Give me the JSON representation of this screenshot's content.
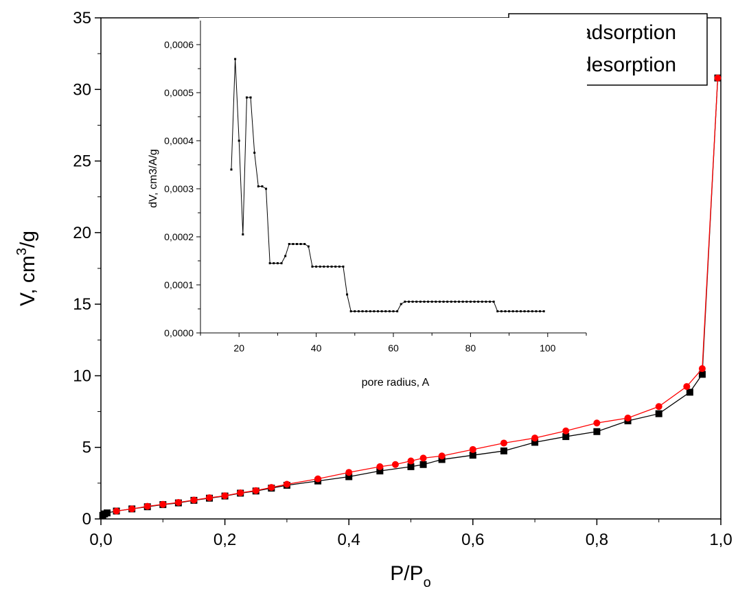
{
  "chart_data": [
    {
      "type": "line",
      "panel": "main",
      "xlabel_main": "P/P",
      "xlabel_sub": "o",
      "ylabel_main": "V, cm",
      "ylabel_sup": "3",
      "ylabel_tail": "/g",
      "xlim": [
        0,
        1.0
      ],
      "ylim": [
        0,
        35
      ],
      "x_ticks": [
        "0,0",
        "0,2",
        "0,4",
        "0,6",
        "0,8",
        "1,0"
      ],
      "y_ticks": [
        "0",
        "5",
        "10",
        "15",
        "20",
        "25",
        "30",
        "35"
      ],
      "legend_position": "top-right",
      "series": [
        {
          "name": "adsorption",
          "color": "#000000",
          "marker": "square",
          "x": [
            0.003,
            0.006,
            0.01,
            0.025,
            0.05,
            0.075,
            0.1,
            0.125,
            0.15,
            0.175,
            0.2,
            0.225,
            0.25,
            0.275,
            0.3,
            0.35,
            0.4,
            0.45,
            0.5,
            0.52,
            0.55,
            0.6,
            0.65,
            0.7,
            0.75,
            0.8,
            0.85,
            0.9,
            0.95,
            0.97,
            0.995
          ],
          "y": [
            0.25,
            0.35,
            0.42,
            0.55,
            0.7,
            0.85,
            1.0,
            1.12,
            1.3,
            1.45,
            1.6,
            1.8,
            1.95,
            2.15,
            2.35,
            2.65,
            2.95,
            3.35,
            3.65,
            3.8,
            4.15,
            4.45,
            4.75,
            5.35,
            5.75,
            6.1,
            6.85,
            7.35,
            8.85,
            10.1,
            30.8
          ]
        },
        {
          "name": "desorption",
          "color": "#ff0000",
          "marker": "circle",
          "x": [
            0.025,
            0.05,
            0.075,
            0.1,
            0.125,
            0.15,
            0.175,
            0.2,
            0.225,
            0.25,
            0.275,
            0.3,
            0.35,
            0.4,
            0.45,
            0.475,
            0.5,
            0.52,
            0.55,
            0.6,
            0.65,
            0.7,
            0.75,
            0.8,
            0.85,
            0.9,
            0.945,
            0.97,
            0.995
          ],
          "y": [
            0.55,
            0.7,
            0.88,
            1.02,
            1.15,
            1.32,
            1.48,
            1.62,
            1.82,
            1.98,
            2.2,
            2.42,
            2.8,
            3.25,
            3.65,
            3.8,
            4.05,
            4.25,
            4.4,
            4.85,
            5.3,
            5.65,
            6.15,
            6.7,
            7.05,
            7.85,
            9.25,
            10.5,
            30.8
          ]
        }
      ]
    },
    {
      "type": "line",
      "panel": "inset",
      "xlabel": "pore radius, A",
      "ylabel": "dV, cm3/A/g",
      "xlim": [
        10,
        110
      ],
      "ylim": [
        0,
        0.00065
      ],
      "x_ticks": [
        "20",
        "40",
        "60",
        "80",
        "100"
      ],
      "y_ticks": [
        "0,0000",
        "0,0001",
        "0,0002",
        "0,0003",
        "0,0004",
        "0,0005",
        "0,0006"
      ],
      "series": [
        {
          "color": "#000000",
          "marker": "small-square",
          "x": [
            18,
            19,
            20,
            21,
            22,
            23,
            24,
            25,
            26,
            27,
            28,
            29,
            30,
            31,
            32,
            33,
            34,
            35,
            36,
            37,
            38,
            39,
            40,
            41,
            42,
            43,
            44,
            45,
            46,
            47,
            48,
            49,
            50,
            51,
            52,
            53,
            54,
            55,
            56,
            57,
            58,
            59,
            60,
            61,
            62,
            63,
            64,
            65,
            66,
            67,
            68,
            69,
            70,
            71,
            72,
            73,
            74,
            75,
            76,
            77,
            78,
            79,
            80,
            81,
            82,
            83,
            84,
            85,
            86,
            87,
            88,
            89,
            90,
            91,
            92,
            93,
            94,
            95,
            96,
            97,
            98,
            99
          ],
          "y": [
            0.00034,
            0.00057,
            0.0004,
            0.000205,
            0.00049,
            0.00049,
            0.000375,
            0.000305,
            0.000305,
            0.0003,
            0.000145,
            0.000145,
            0.000145,
            0.000145,
            0.00016,
            0.000185,
            0.000185,
            0.000185,
            0.000185,
            0.000185,
            0.00018,
            0.000138,
            0.000138,
            0.000138,
            0.000138,
            0.000138,
            0.000138,
            0.000138,
            0.000138,
            0.000138,
            8e-05,
            4.5e-05,
            4.5e-05,
            4.5e-05,
            4.5e-05,
            4.5e-05,
            4.5e-05,
            4.5e-05,
            4.5e-05,
            4.5e-05,
            4.5e-05,
            4.5e-05,
            4.5e-05,
            4.5e-05,
            6e-05,
            6.5e-05,
            6.5e-05,
            6.5e-05,
            6.5e-05,
            6.5e-05,
            6.5e-05,
            6.5e-05,
            6.5e-05,
            6.5e-05,
            6.5e-05,
            6.5e-05,
            6.5e-05,
            6.5e-05,
            6.5e-05,
            6.5e-05,
            6.5e-05,
            6.5e-05,
            6.5e-05,
            6.5e-05,
            6.5e-05,
            6.5e-05,
            6.5e-05,
            6.5e-05,
            6.5e-05,
            4.5e-05,
            4.5e-05,
            4.5e-05,
            4.5e-05,
            4.5e-05,
            4.5e-05,
            4.5e-05,
            4.5e-05,
            4.5e-05,
            4.5e-05,
            4.5e-05,
            4.5e-05,
            4.5e-05
          ]
        }
      ]
    }
  ]
}
